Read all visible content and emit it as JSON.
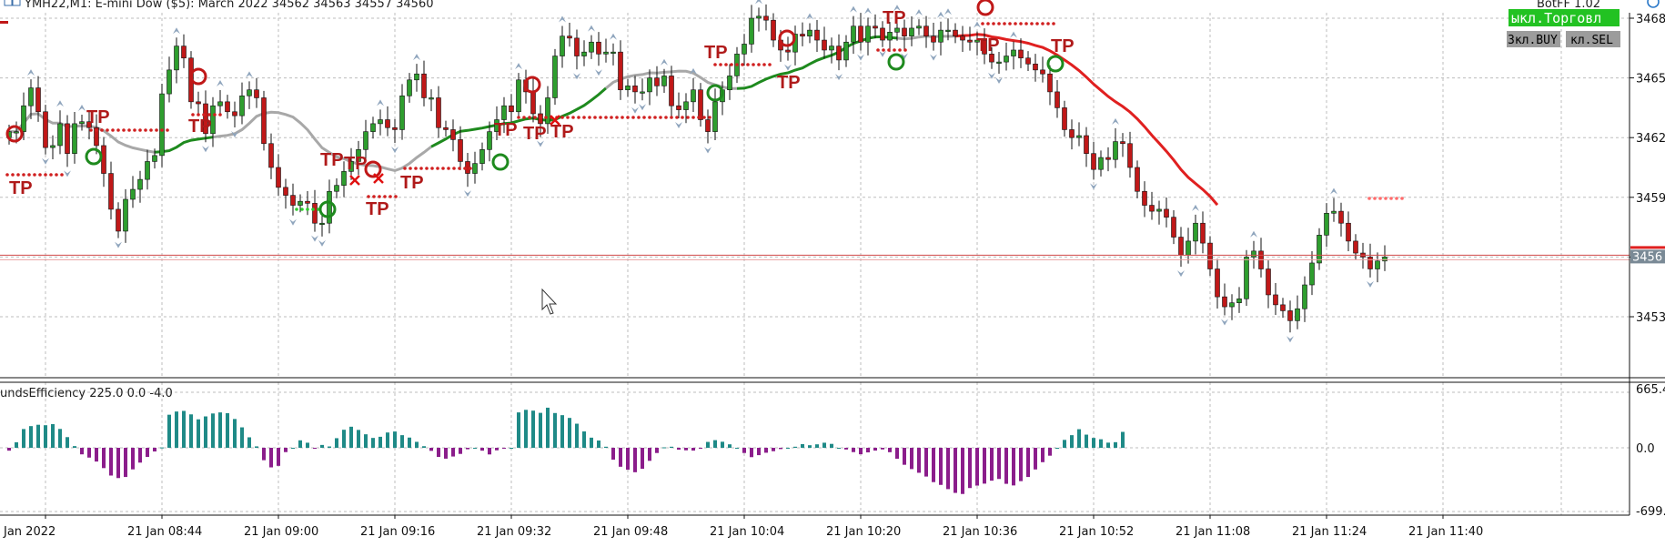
{
  "header": {
    "symbol_info": "YMH22,M1:  E-mini Dow ($5): March 2022  34562 34563 34557 34560",
    "bot_label": "BotFF 1.02"
  },
  "buttons": {
    "trade_toggle": "ыкл.Торговл",
    "buy_toggle": "Зкл.BUY",
    "sell_toggle": "кл.SEL"
  },
  "colors": {
    "bull": "#2e9e2e",
    "bear": "#c01818",
    "ma_gray": "#a8a8a8",
    "ma_green": "#1e8a1e",
    "ma_red": "#e02020",
    "hist_pos": "#1f8a87",
    "hist_neg": "#8b1d8b",
    "price_line": "#d04a4a",
    "trade_toggle_bg": "#22c222",
    "tp_text": "#b01a1a"
  },
  "cursor_icon": "arrow-cursor-icon",
  "chart_data": [
    {
      "type": "candlestick",
      "title": "YMH22,M1:  E-mini Dow ($5): March 2022  34562 34563 34557 34560",
      "y_ticks": [
        "3468",
        "3465",
        "3462",
        "3459",
        "3456",
        "3453"
      ],
      "current_price_label": "3456",
      "current_price": 3456.0,
      "ylim": [
        3450.0,
        3468.6
      ],
      "x_ticks": [
        "Jan 2022",
        "21 Jan 08:44",
        "21 Jan 09:00",
        "21 Jan 09:16",
        "21 Jan 09:32",
        "21 Jan 09:48",
        "21 Jan 10:04",
        "21 Jan 10:20",
        "21 Jan 10:36",
        "21 Jan 10:52",
        "21 Jan 11:08",
        "21 Jan 11:24",
        "21 Jan 11:40"
      ],
      "closes": [
        3462.3,
        3462.3,
        3463.6,
        3464.5,
        3463.3,
        3461.5,
        3461.6,
        3462.7,
        3461.2,
        3462.7,
        3462.8,
        3462.5,
        3461.6,
        3460.2,
        3458.4,
        3457.3,
        3458.9,
        3459.4,
        3459.9,
        3460.8,
        3461.1,
        3464.2,
        3465.4,
        3466.6,
        3466.0,
        3463.8,
        3463.7,
        3462.2,
        3463.6,
        3463.8,
        3463.3,
        3463.1,
        3464.1,
        3464.4,
        3464.0,
        3461.7,
        3460.5,
        3459.5,
        3459.1,
        3458.6,
        3458.8,
        3458.7,
        3457.7,
        3457.7,
        3459.3,
        3459.6,
        3460.3,
        3460.8,
        3461.4,
        3462.3,
        3462.7,
        3462.9,
        3462.5,
        3462.4,
        3464.1,
        3464.9,
        3465.2,
        3464.0,
        3464.0,
        3462.5,
        3462.4,
        3461.9,
        3460.8,
        3460.2,
        3460.7,
        3461.4,
        3462.3,
        3462.9,
        3463.6,
        3463.3,
        3464.9,
        3464.3,
        3463.2,
        3462.7,
        3464.0,
        3466.1,
        3467.1,
        3467.0,
        3466.1,
        3466.3,
        3466.8,
        3466.2,
        3466.3,
        3466.3,
        3464.4,
        3464.6,
        3464.3,
        3464.3,
        3465.0,
        3464.6,
        3465.1,
        3463.6,
        3463.4,
        3463.8,
        3464.4,
        3462.9,
        3462.3,
        3463.8,
        3464.4,
        3465.1,
        3466.2,
        3466.7,
        3468.0,
        3468.1,
        3467.9,
        3466.9,
        3466.4,
        3466.3,
        3467.2,
        3467.1,
        3467.4,
        3466.9,
        3466.4,
        3466.6,
        3465.9,
        3466.8,
        3467.6,
        3466.8,
        3467.6,
        3467.5,
        3466.9,
        3467.3,
        3467.5,
        3467.1,
        3467.5,
        3467.6,
        3467.1,
        3466.8,
        3467.4,
        3467.4,
        3467.1,
        3466.9,
        3466.8,
        3466.9,
        3466.2,
        3465.8,
        3465.8,
        3466.1,
        3466.4,
        3466.0,
        3465.7,
        3465.4,
        3465.2,
        3464.3,
        3463.5,
        3462.4,
        3462.0,
        3462.1,
        3461.2,
        3460.4,
        3461.0,
        3460.9,
        3461.8,
        3461.7,
        3460.5,
        3459.3,
        3458.6,
        3458.3,
        3458.4,
        3458.0,
        3457.0,
        3456.1,
        3456.8,
        3457.7,
        3456.7,
        3455.4,
        3454.0,
        3453.5,
        3453.7,
        3453.9,
        3456.0,
        3456.3,
        3455.4,
        3454.1,
        3453.6,
        3453.3,
        3452.8,
        3453.4,
        3454.6,
        3455.7,
        3457.1,
        3458.2,
        3458.3,
        3457.7,
        3456.8,
        3456.2,
        3456.0,
        3455.4,
        3455.8,
        3456.0
      ],
      "series": [
        {
          "name": "",
          "kind": "moving-average"
        }
      ]
    },
    {
      "type": "bar",
      "title": "undsEfficiency 225.0 0.0 -4.0",
      "y_ticks": [
        "665.4",
        "0.0",
        "-699."
      ],
      "ylim": [
        -699.0,
        665.4
      ],
      "values": [
        -32,
        62,
        211,
        244,
        259,
        254,
        266,
        212,
        120,
        19,
        -73,
        -109,
        -153,
        -226,
        -309,
        -337,
        -325,
        -240,
        -165,
        -102,
        -41,
        4,
        372,
        408,
        415,
        376,
        320,
        353,
        386,
        398,
        389,
        324,
        230,
        118,
        16,
        -138,
        -218,
        -201,
        -48,
        0,
        84,
        57,
        -5,
        32,
        15,
        108,
        203,
        237,
        201,
        152,
        111,
        124,
        172,
        183,
        142,
        115,
        67,
        18,
        -34,
        -102,
        -121,
        -97,
        -68,
        -16,
        0,
        -32,
        -74,
        -28,
        -5,
        0,
        398,
        427,
        418,
        393,
        451,
        391,
        367,
        336,
        271,
        184,
        114,
        82,
        12,
        -132,
        -211,
        -244,
        -272,
        -234,
        -145,
        -58,
        5,
        12,
        -21,
        -28,
        -31,
        -2,
        66,
        86,
        68,
        39,
        0,
        -58,
        -104,
        -82,
        -55,
        -38,
        -14,
        0,
        12,
        41,
        29,
        39,
        57,
        44,
        0,
        -19,
        -48,
        -72,
        -51,
        -31,
        -18,
        -49,
        -122,
        -189,
        -237,
        -278,
        -320,
        -382,
        -413,
        -460,
        -502,
        -514,
        -448,
        -421,
        -399,
        -366,
        -347,
        -401,
        -419,
        -371,
        -325,
        -241,
        -160,
        -88,
        0,
        89,
        142,
        209,
        148,
        111,
        96,
        58,
        63,
        179
      ]
    }
  ]
}
